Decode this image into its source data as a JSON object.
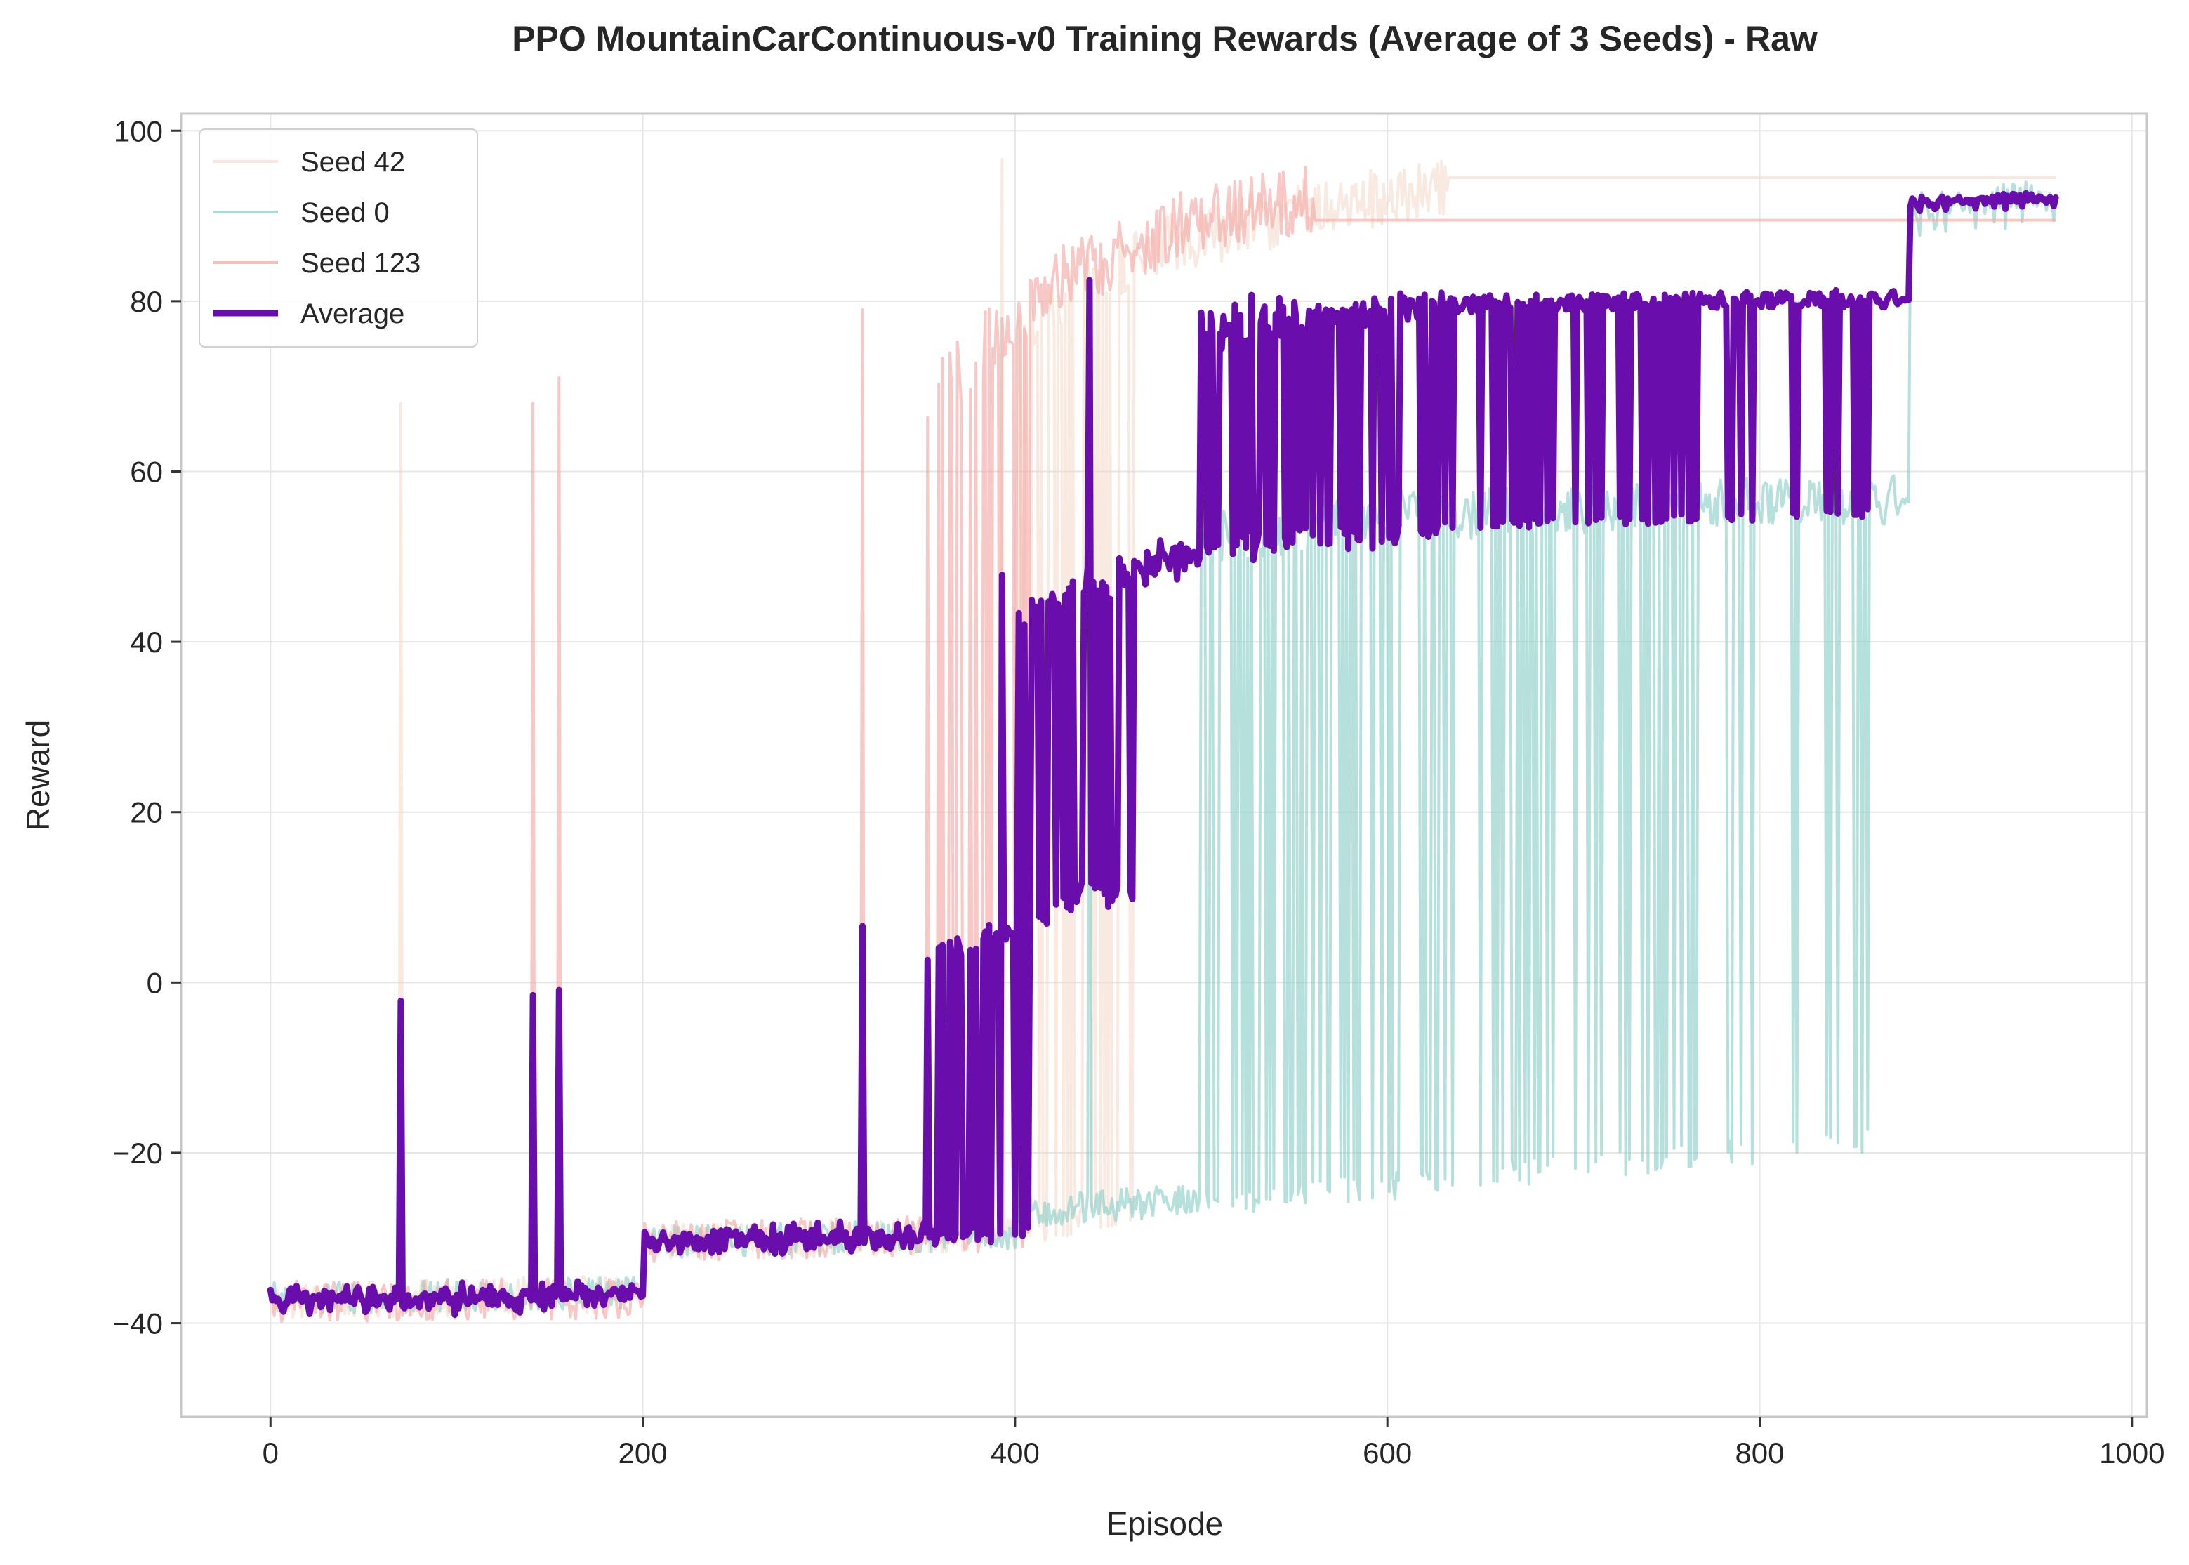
{
  "chart_data": {
    "type": "line",
    "title": "PPO MountainCarContinuous-v0 Training Rewards (Average of 3 Seeds) - Raw",
    "xlabel": "Episode",
    "ylabel": "Reward",
    "xlim": [
      -48,
      1008
    ],
    "ylim": [
      -51,
      102
    ],
    "x_ticks": [
      0,
      200,
      400,
      600,
      800,
      1000
    ],
    "y_ticks": [
      -40,
      -20,
      0,
      20,
      40,
      60,
      80,
      100
    ],
    "x_tick_labels": [
      "0",
      "200",
      "400",
      "600",
      "800",
      "1000"
    ],
    "y_tick_labels": [
      "−40",
      "−20",
      "0",
      "20",
      "40",
      "60",
      "80",
      "100"
    ],
    "grid": true,
    "legend_position": "top-left",
    "episodes": 960,
    "series": [
      {
        "name": "Seed 42",
        "color": "#f2d9c7",
        "opacity": 0.55,
        "width": 4,
        "baseline_segments": [
          {
            "from": 0,
            "to": 200,
            "start": -37.5,
            "end": -36.5
          },
          {
            "from": 200,
            "to": 420,
            "start": -30.5,
            "end": -29.5
          },
          {
            "from": 420,
            "to": 470,
            "start": -28.5,
            "end": -27.5
          }
        ],
        "high_segments": [
          {
            "from": 395,
            "to": 470,
            "start": 75,
            "end": 86
          },
          {
            "from": 470,
            "to": 560,
            "start": 86,
            "end": 91
          },
          {
            "from": 560,
            "to": 632,
            "start": 91,
            "end": 93
          },
          {
            "from": 632,
            "to": 960,
            "start": 94.5,
            "end": 94.5
          }
        ],
        "spikes": [
          {
            "x": 70,
            "y": 68
          }
        ],
        "transition": {
          "from": 380,
          "to": 480,
          "p_start": 0.05,
          "p_end": 1.0
        },
        "flat_from": 632,
        "noise": 1.8
      },
      {
        "name": "Seed 0",
        "color": "#8ecfc9",
        "opacity": 0.65,
        "width": 4,
        "baseline_segments": [
          {
            "from": 0,
            "to": 200,
            "start": -37.0,
            "end": -36.5
          },
          {
            "from": 200,
            "to": 400,
            "start": -30.5,
            "end": -29.5
          },
          {
            "from": 400,
            "to": 500,
            "start": -27.0,
            "end": -25.5
          },
          {
            "from": 500,
            "to": 880,
            "start": -26.0,
            "end": -18.0
          }
        ],
        "high_segments": [
          {
            "from": 420,
            "to": 500,
            "start": 48,
            "end": 52
          },
          {
            "from": 500,
            "to": 600,
            "start": 52,
            "end": 55
          },
          {
            "from": 600,
            "to": 880,
            "start": 55,
            "end": 57
          },
          {
            "from": 880,
            "to": 960,
            "start": 91,
            "end": 93
          }
        ],
        "spikes": [
          {
            "x": 440,
            "y": 80
          }
        ],
        "transition": {
          "from": 500,
          "to": 875,
          "p_start": 0.6,
          "p_end": 0.9
        },
        "flat_from": 875,
        "noise": 1.6
      },
      {
        "name": "Seed 123",
        "color": "#f2aaa6",
        "opacity": 0.65,
        "width": 4,
        "baseline_segments": [
          {
            "from": 0,
            "to": 200,
            "start": -37.5,
            "end": -37.0
          },
          {
            "from": 200,
            "to": 400,
            "start": -30.5,
            "end": -29.5
          }
        ],
        "high_segments": [
          {
            "from": 350,
            "to": 420,
            "start": 68,
            "end": 82
          },
          {
            "from": 420,
            "to": 500,
            "start": 82,
            "end": 90
          },
          {
            "from": 500,
            "to": 560,
            "start": 90,
            "end": 92
          },
          {
            "from": 560,
            "to": 960,
            "start": 89.5,
            "end": 89.5
          }
        ],
        "spikes": [
          {
            "x": 141,
            "y": 68
          },
          {
            "x": 155,
            "y": 71
          },
          {
            "x": 318,
            "y": 79
          }
        ],
        "transition": {
          "from": 350,
          "to": 410,
          "p_start": 0.15,
          "p_end": 1.0
        },
        "flat_from": 560,
        "noise": 2.0
      },
      {
        "name": "Average",
        "color": "#6a0dad",
        "opacity": 1.0,
        "width": 9,
        "computed": "mean of Seed 42, Seed 0, Seed 123"
      }
    ]
  }
}
